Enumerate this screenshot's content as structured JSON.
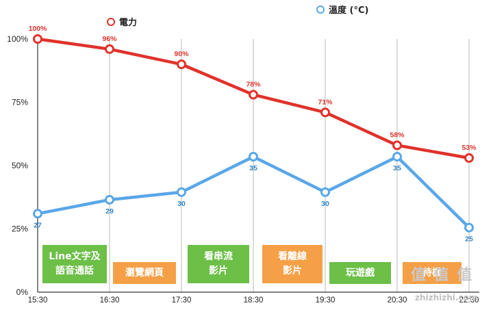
{
  "chart_data": {
    "type": "line",
    "categories": [
      "15:30",
      "16:30",
      "17:30",
      "18:30",
      "19:30",
      "20:30",
      "22:30"
    ],
    "y_ticks": [
      "0%",
      "25%",
      "50%",
      "75%",
      "100%"
    ],
    "ylim": [
      0,
      100
    ],
    "grid": "vertical",
    "legend_position": "top",
    "series": [
      {
        "name": "電力",
        "color": "#e0322b",
        "values": [
          100,
          96,
          90,
          78,
          71,
          58,
          53
        ],
        "labels": [
          "100%",
          "96%",
          "90%",
          "78%",
          "71%",
          "58%",
          "53%"
        ]
      },
      {
        "name": "溫度 (°C)",
        "color": "#59a7e8",
        "values": [
          31,
          36.5,
          39.5,
          53.5,
          39.5,
          53.5,
          25.5
        ],
        "labels": [
          "27",
          "29",
          "30",
          "35",
          "30",
          "35",
          "25"
        ]
      }
    ]
  },
  "activities": [
    {
      "label": "Line文字及\n語音通話",
      "color": "green"
    },
    {
      "label": "瀏覽網頁",
      "color": "orange"
    },
    {
      "label": "看串流\n影片",
      "color": "green"
    },
    {
      "label": "看離線\n影片",
      "color": "orange"
    },
    {
      "label": "玩遊戲",
      "color": "green"
    },
    {
      "label": "待機",
      "color": "orange"
    }
  ],
  "watermark": {
    "main": "值 值 值",
    "sub": "zhizhizhi.com"
  }
}
